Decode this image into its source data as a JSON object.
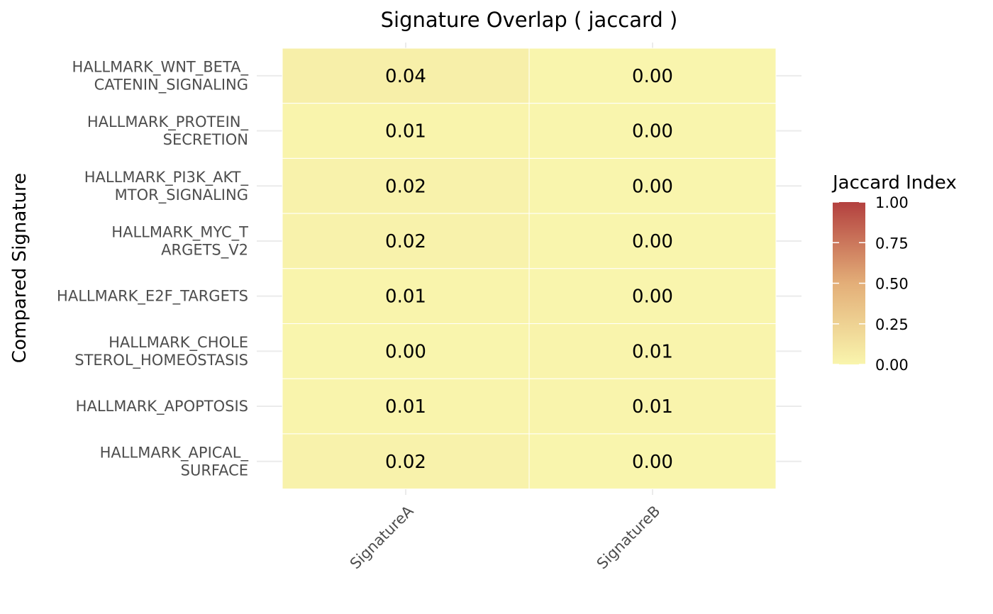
{
  "chart_data": {
    "type": "heatmap",
    "title": "Signature Overlap ( jaccard )",
    "xlabel": "",
    "ylabel": "Compared Signature",
    "x_categories": [
      "SignatureA",
      "SignatureB"
    ],
    "y_categories": [
      [
        "HALLMARK_WNT_BETA_",
        "CATENIN_SIGNALING"
      ],
      [
        "HALLMARK_PROTEIN_",
        "SECRETION"
      ],
      [
        "HALLMARK_PI3K_AKT_",
        "MTOR_SIGNALING"
      ],
      [
        "HALLMARK_MYC_T",
        "ARGETS_V2"
      ],
      [
        "HALLMARK_E2F_TARGETS"
      ],
      [
        "HALLMARK_CHOLE",
        "STEROL_HOMEOSTASIS"
      ],
      [
        "HALLMARK_APOPTOSIS"
      ],
      [
        "HALLMARK_APICAL_",
        "SURFACE"
      ]
    ],
    "values": [
      [
        0.04,
        0.0
      ],
      [
        0.01,
        0.0
      ],
      [
        0.02,
        0.0
      ],
      [
        0.02,
        0.0
      ],
      [
        0.01,
        0.0
      ],
      [
        0.0,
        0.01
      ],
      [
        0.01,
        0.01
      ],
      [
        0.02,
        0.0
      ]
    ],
    "cell_labels": [
      [
        "0.04",
        "0.00"
      ],
      [
        "0.01",
        "0.00"
      ],
      [
        "0.02",
        "0.00"
      ],
      [
        "0.02",
        "0.00"
      ],
      [
        "0.01",
        "0.00"
      ],
      [
        "0.00",
        "0.01"
      ],
      [
        "0.01",
        "0.01"
      ],
      [
        "0.02",
        "0.00"
      ]
    ],
    "legend": {
      "title": "Jaccard Index",
      "placement": "right",
      "range": [
        0,
        1
      ],
      "breaks": [
        1.0,
        0.75,
        0.5,
        0.25,
        0.0
      ],
      "break_labels": [
        "1.00",
        "0.75",
        "0.50",
        "0.25",
        "0.00"
      ]
    },
    "colors": {
      "low": "#f9f5ad",
      "mid": "#e3ae78",
      "high": "#b3403f",
      "grid": "#ebebeb"
    },
    "grid": true
  }
}
